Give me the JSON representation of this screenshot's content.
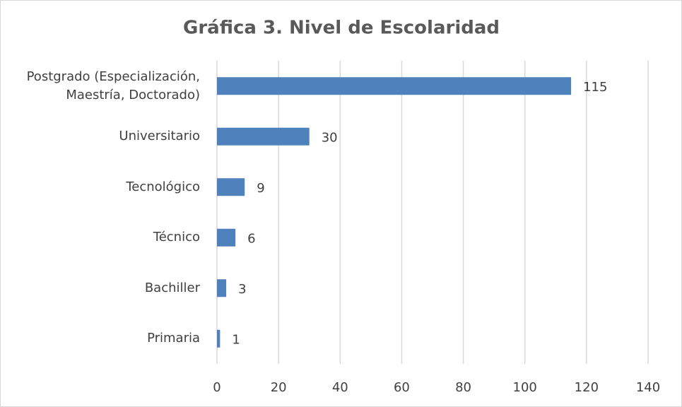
{
  "chart_data": {
    "type": "bar",
    "orientation": "horizontal",
    "title": "Gráfica 3. Nivel de Escolaridad",
    "categories": [
      "Postgrado (Especialización, Maestría, Doctorado)",
      "Universitario",
      "Tecnológico",
      "Técnico",
      "Bachiller",
      "Primaria"
    ],
    "values": [
      115,
      30,
      9,
      6,
      3,
      1
    ],
    "color": "#4f81bd",
    "xlim": [
      0,
      140
    ],
    "xticks": [
      0,
      20,
      40,
      60,
      80,
      100,
      120,
      140
    ],
    "grid": true
  }
}
